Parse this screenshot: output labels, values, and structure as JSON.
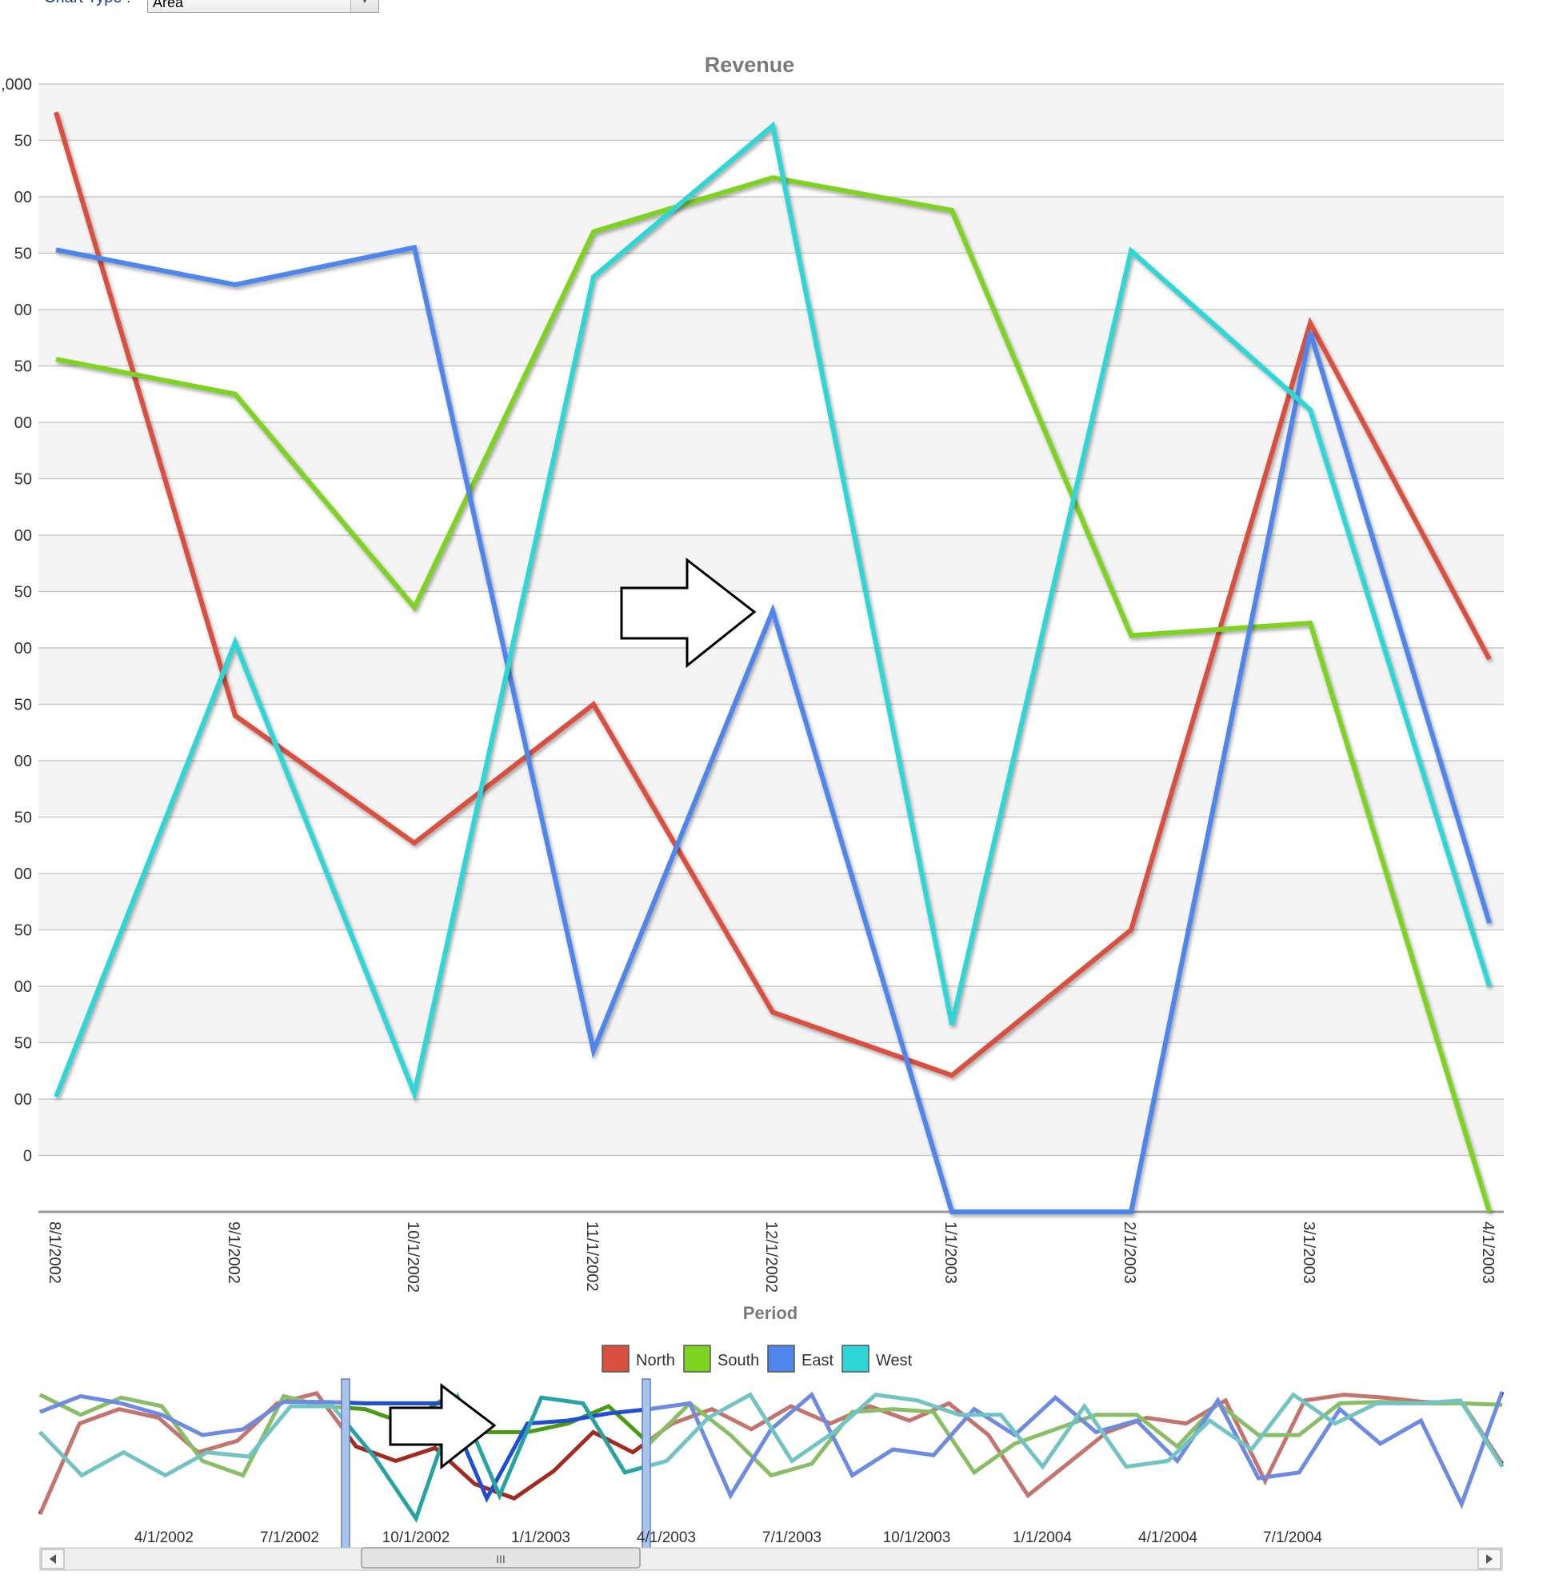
{
  "toolbar": {
    "chart_type_label": "Chart Type :",
    "chart_type_value": "Area"
  },
  "legend": [
    "North",
    "South",
    "East",
    "West"
  ],
  "colors": {
    "North": "#d9503f",
    "South": "#7ed321",
    "East": "#4f86ec",
    "West": "#2ed6d6"
  },
  "chart_data": {
    "type": "line",
    "title": "Revenue",
    "xlabel": "Period",
    "ylabel": "",
    "categories": [
      "8/1/2002",
      "9/1/2002",
      "10/1/2002",
      "11/1/2002",
      "12/1/2002",
      "1/1/2003",
      "2/1/2003",
      "3/1/2003",
      "4/1/2003"
    ],
    "y_tick_labels": [
      ",000",
      "50",
      "00",
      "50",
      "00",
      "50",
      "00",
      "50",
      "00",
      "50",
      "00",
      "50",
      "00",
      "50",
      "00",
      "50",
      "00",
      "50",
      "00",
      "0",
      ""
    ],
    "ylim": [
      0,
      1000
    ],
    "grid": true,
    "series": [
      {
        "name": "North",
        "values": [
          975,
          440,
          327,
          450,
          177,
          121,
          250,
          788,
          490
        ]
      },
      {
        "name": "South",
        "values": [
          756,
          725,
          536,
          869,
          917,
          888,
          511,
          522,
          0
        ]
      },
      {
        "name": "East",
        "values": [
          853,
          822,
          855,
          143,
          533,
          0,
          0,
          780,
          256
        ]
      },
      {
        "name": "West",
        "values": [
          102,
          505,
          105,
          829,
          963,
          166,
          852,
          711,
          200
        ]
      }
    ]
  },
  "navigator": {
    "tick_labels": [
      "4/1/2002",
      "7/1/2002",
      "10/1/2002",
      "1/1/2003",
      "4/1/2003",
      "7/1/2003",
      "10/1/2003",
      "1/1/2004",
      "4/1/2004",
      "7/1/2004"
    ],
    "scroll_thumb_label": "III",
    "series": [
      {
        "name": "North",
        "values": [
          0.15,
          0.78,
          0.88,
          0.82,
          0.58,
          0.66,
          0.92,
          0.99,
          0.62,
          0.52,
          0.61,
          0.36,
          0.26,
          0.45,
          0.72,
          0.58,
          0.78,
          0.88,
          0.74,
          0.9,
          0.78,
          0.9,
          0.8,
          0.92,
          0.7,
          0.28,
          0.5,
          0.72,
          0.82,
          0.78,
          0.94,
          0.38,
          0.94,
          0.98,
          0.96,
          0.93,
          0.92,
          0.5
        ]
      },
      {
        "name": "South",
        "values": [
          0.98,
          0.84,
          0.96,
          0.9,
          0.52,
          0.42,
          0.97,
          0.9,
          0.88,
          0.78,
          0.96,
          0.72,
          0.72,
          0.78,
          0.9,
          0.64,
          0.92,
          0.7,
          0.42,
          0.5,
          0.86,
          0.88,
          0.86,
          0.44,
          0.64,
          0.74,
          0.84,
          0.84,
          0.62,
          0.92,
          0.7,
          0.7,
          0.92,
          0.93,
          0.92,
          0.92,
          0.91
        ]
      },
      {
        "name": "East",
        "values": [
          0.86,
          0.97,
          0.92,
          0.84,
          0.7,
          0.74,
          0.93,
          0.93,
          0.92,
          0.92,
          0.92,
          0.26,
          0.78,
          0.8,
          0.85,
          0.88,
          0.92,
          0.28,
          0.74,
          0.98,
          0.42,
          0.6,
          0.56,
          0.88,
          0.7,
          0.96,
          0.72,
          0.8,
          0.52,
          0.94,
          0.4,
          0.44,
          0.88,
          0.64,
          0.8,
          0.22,
          1.0
        ]
      },
      {
        "name": "West",
        "values": [
          0.72,
          0.42,
          0.58,
          0.42,
          0.58,
          0.55,
          0.9,
          0.9,
          0.55,
          0.12,
          0.96,
          0.28,
          0.96,
          0.92,
          0.44,
          0.52,
          0.82,
          0.98,
          0.52,
          0.72,
          0.98,
          0.94,
          0.84,
          0.84,
          0.48,
          0.9,
          0.48,
          0.52,
          0.8,
          0.6,
          0.98,
          0.78,
          0.92,
          0.92,
          0.94,
          0.48
        ]
      }
    ]
  }
}
